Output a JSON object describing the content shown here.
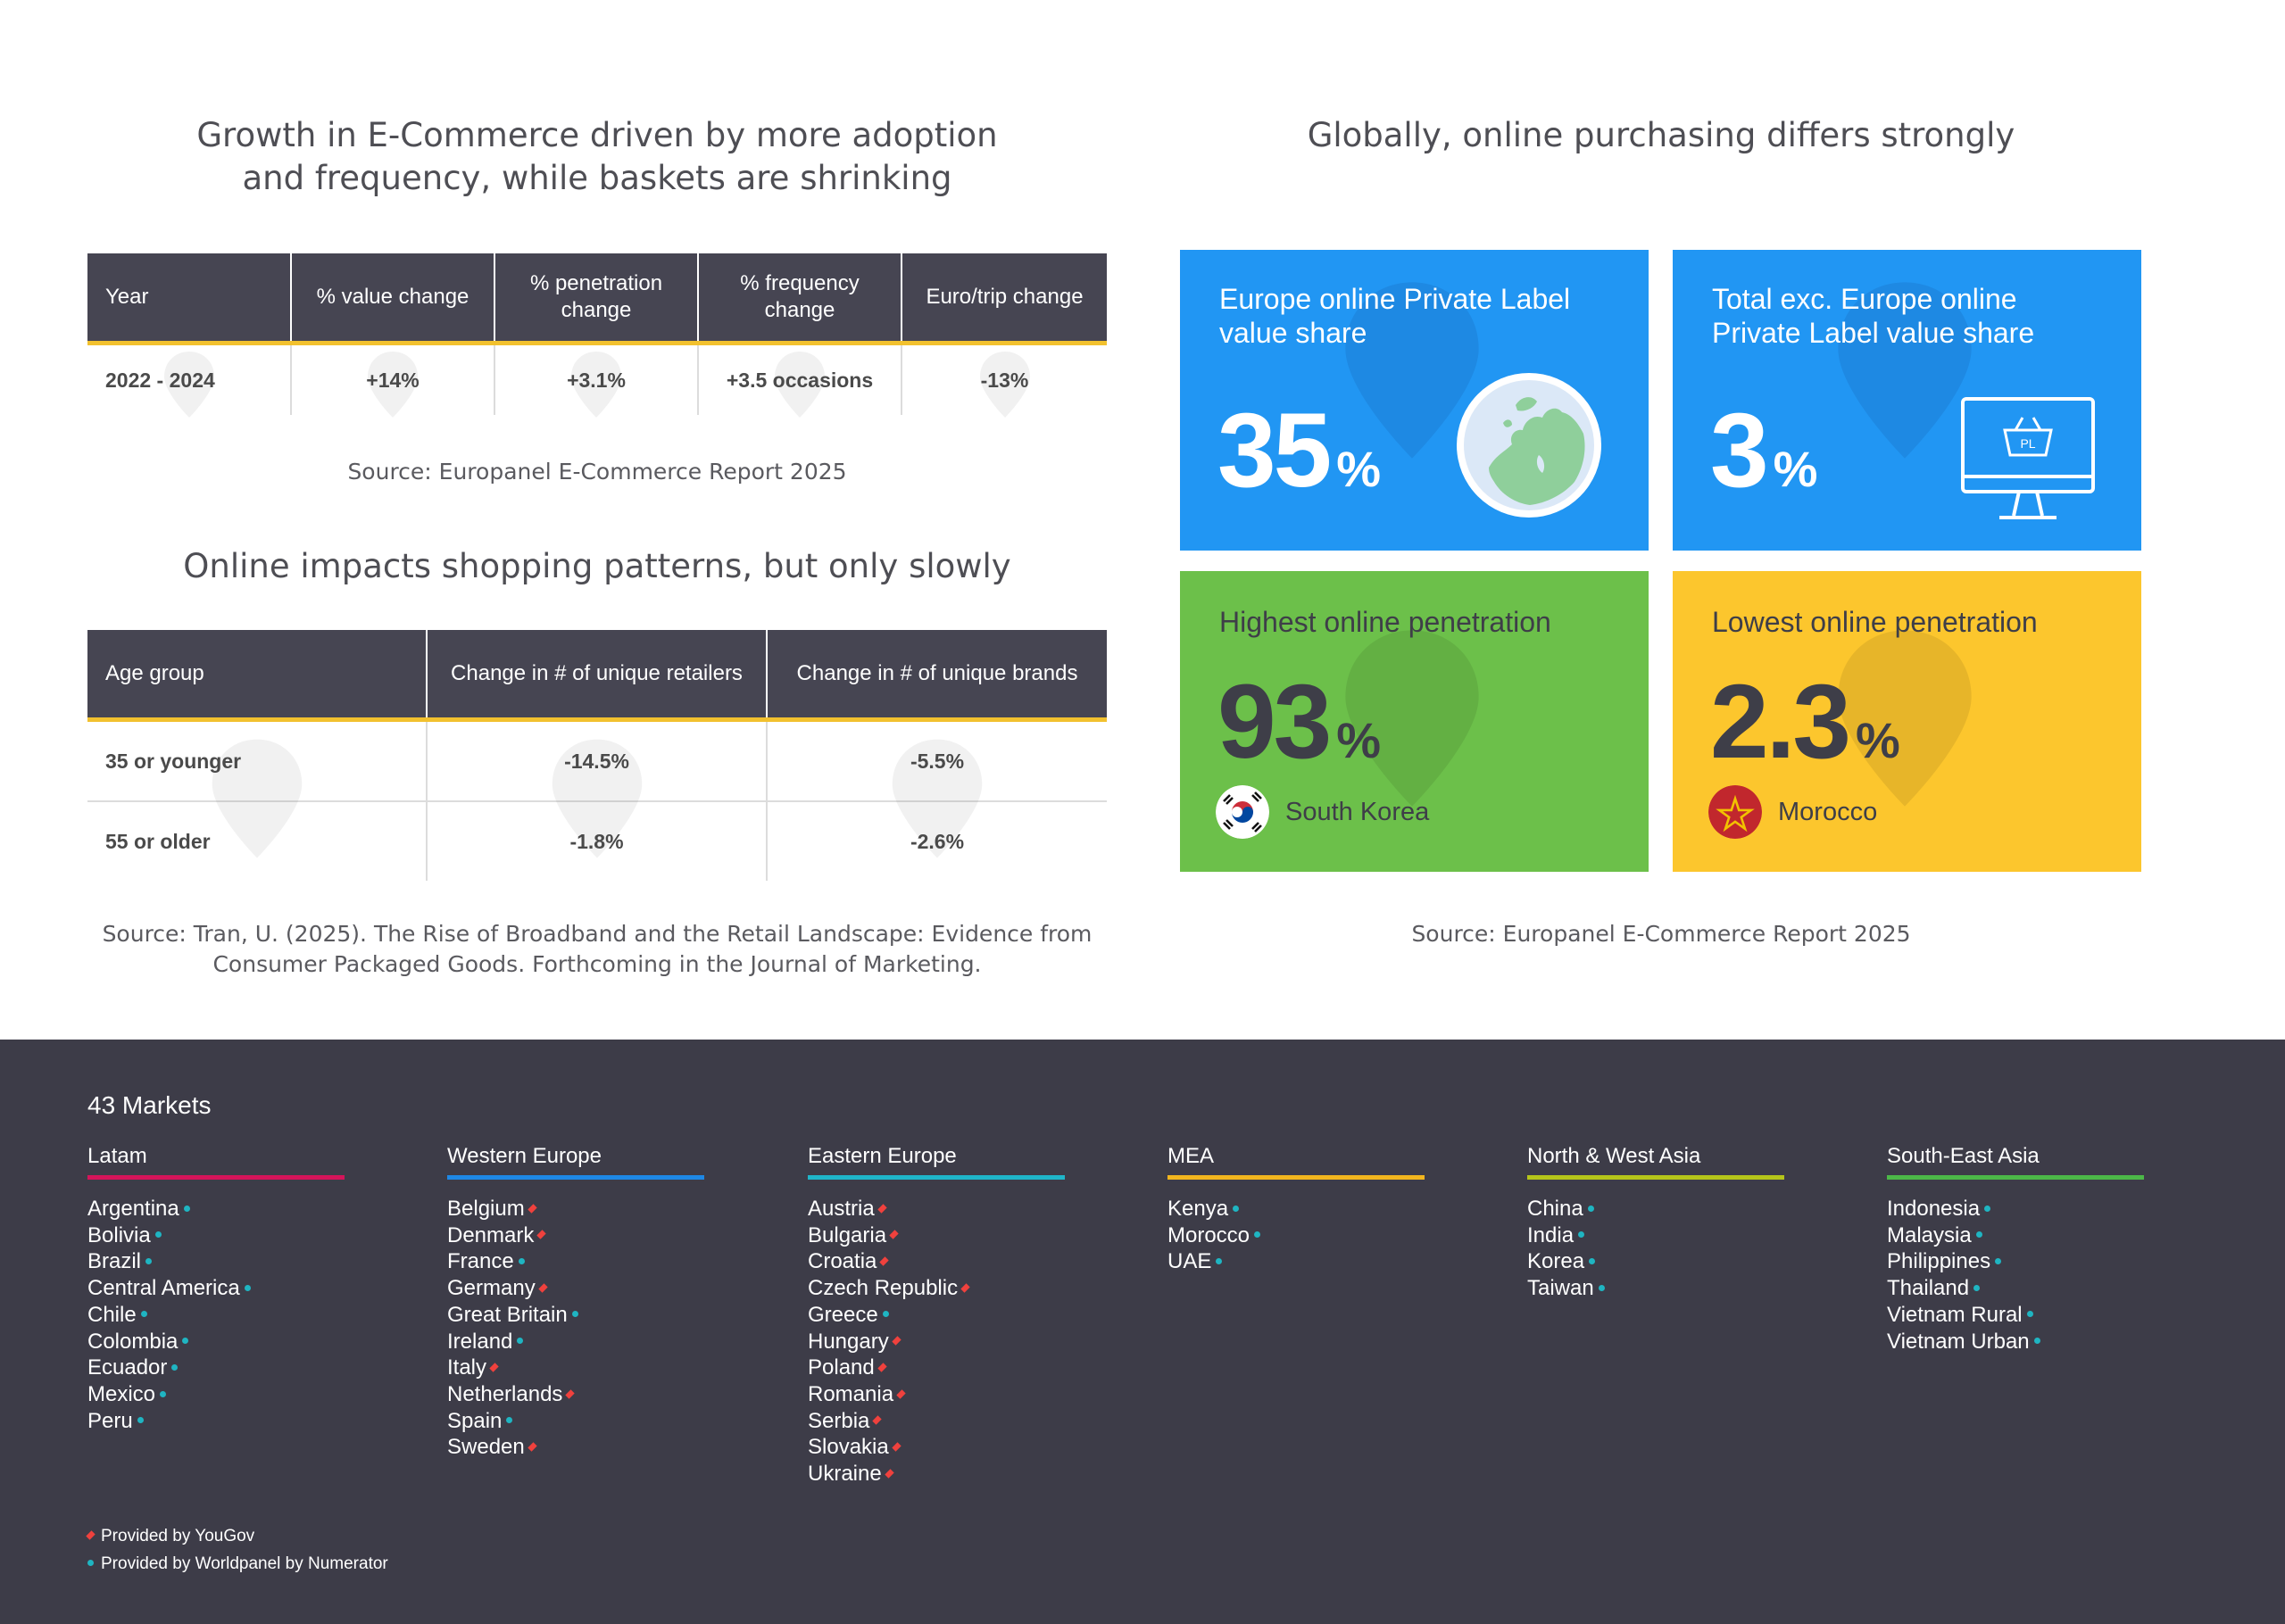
{
  "left": {
    "title1": "Growth in E-Commerce driven by more adoption\nand frequency, while baskets are shrinking",
    "table1": {
      "headers": [
        "Year",
        "% value change",
        "% penetration change",
        "% frequency change",
        "Euro/trip change"
      ],
      "row": [
        "2022 - 2024",
        "+14%",
        "+3.1%",
        "+3.5 occasions",
        "-13%"
      ]
    },
    "source1": "Source: Europanel E-Commerce Report 2025",
    "title2": "Online impacts shopping patterns, but only slowly",
    "table2": {
      "headers": [
        "Age group",
        "Change in # of unique retailers",
        "Change in # of unique brands"
      ],
      "rows": [
        [
          "35 or younger",
          "-14.5%",
          "-5.5%"
        ],
        [
          "55 or older",
          "-1.8%",
          "-2.6%"
        ]
      ]
    },
    "source2": "Source: Tran, U. (2025). The Rise of Broadband and the Retail Landscape: Evidence from\nConsumer Packaged Goods. Forthcoming in the Journal of Marketing."
  },
  "right": {
    "title": "Globally, online purchasing differs strongly",
    "tiles": [
      {
        "label": "Europe online Private Label\nvalue share",
        "value": "35",
        "unit": "%",
        "icon": "globe-europe-icon",
        "color": "#2196f3"
      },
      {
        "label": "Total exc. Europe online\nPrivate Label value share",
        "value": "3",
        "unit": "%",
        "icon": "monitor-basket-icon",
        "icon_text": "PL",
        "color": "#2196f3"
      },
      {
        "label": "Highest online penetration",
        "value": "93",
        "unit": "%",
        "country": "South Korea",
        "icon": "south-korea-flag-icon",
        "color": "#6cc04a"
      },
      {
        "label": "Lowest online penetration",
        "value": "2.3",
        "unit": "%",
        "country": "Morocco",
        "icon": "morocco-flag-icon",
        "color": "#fcc62d"
      }
    ],
    "source": "Source: Europanel E-Commerce Report 2025"
  },
  "markets": {
    "title": "43 Markets",
    "regions": [
      {
        "name": "Latam",
        "color": "#d4145a",
        "countries": [
          {
            "n": "Argentina",
            "m": "dot"
          },
          {
            "n": "Bolivia",
            "m": "dot"
          },
          {
            "n": "Brazil",
            "m": "dot"
          },
          {
            "n": "Central America",
            "m": "dot"
          },
          {
            "n": "Chile",
            "m": "dot"
          },
          {
            "n": "Colombia",
            "m": "dot"
          },
          {
            "n": "Ecuador",
            "m": "dot"
          },
          {
            "n": "Mexico",
            "m": "dot"
          },
          {
            "n": "Peru",
            "m": "dot"
          }
        ]
      },
      {
        "name": "Western Europe",
        "color": "#1e88e5",
        "countries": [
          {
            "n": "Belgium",
            "m": "dia"
          },
          {
            "n": "Denmark",
            "m": "dia"
          },
          {
            "n": "France",
            "m": "dot"
          },
          {
            "n": "Germany",
            "m": "dia"
          },
          {
            "n": "Great Britain",
            "m": "dot"
          },
          {
            "n": "Ireland",
            "m": "dot"
          },
          {
            "n": "Italy",
            "m": "dia"
          },
          {
            "n": "Netherlands",
            "m": "dia"
          },
          {
            "n": "Spain",
            "m": "dot"
          },
          {
            "n": "Sweden",
            "m": "dia"
          }
        ]
      },
      {
        "name": "Eastern Europe",
        "color": "#1fb5c9",
        "countries": [
          {
            "n": "Austria",
            "m": "dia"
          },
          {
            "n": "Bulgaria",
            "m": "dia"
          },
          {
            "n": "Croatia",
            "m": "dia"
          },
          {
            "n": "Czech Republic",
            "m": "dia"
          },
          {
            "n": "Greece",
            "m": "dot"
          },
          {
            "n": "Hungary",
            "m": "dia"
          },
          {
            "n": "Poland",
            "m": "dia"
          },
          {
            "n": "Romania",
            "m": "dia"
          },
          {
            "n": "Serbia",
            "m": "dia"
          },
          {
            "n": "Slovakia",
            "m": "dia"
          },
          {
            "n": "Ukraine",
            "m": "dia"
          }
        ]
      },
      {
        "name": "MEA",
        "color": "#f2b51e",
        "countries": [
          {
            "n": "Kenya",
            "m": "dot"
          },
          {
            "n": "Morocco",
            "m": "dot"
          },
          {
            "n": "UAE",
            "m": "dot"
          }
        ]
      },
      {
        "name": "North & West Asia",
        "color": "#b5c51a",
        "countries": [
          {
            "n": "China",
            "m": "dot"
          },
          {
            "n": "India",
            "m": "dot"
          },
          {
            "n": "Korea",
            "m": "dot"
          },
          {
            "n": "Taiwan",
            "m": "dot"
          }
        ]
      },
      {
        "name": "South-East Asia",
        "color": "#4cb848",
        "countries": [
          {
            "n": "Indonesia",
            "m": "dot"
          },
          {
            "n": "Malaysia",
            "m": "dot"
          },
          {
            "n": "Philippines",
            "m": "dot"
          },
          {
            "n": "Thailand",
            "m": "dot"
          },
          {
            "n": "Vietnam Rural",
            "m": "dot"
          },
          {
            "n": "Vietnam Urban",
            "m": "dot"
          }
        ]
      }
    ],
    "legend": [
      {
        "m": "dia",
        "text": "Provided by YouGov"
      },
      {
        "m": "dot",
        "text": "Provided by Worldpanel by Numerator"
      }
    ]
  }
}
